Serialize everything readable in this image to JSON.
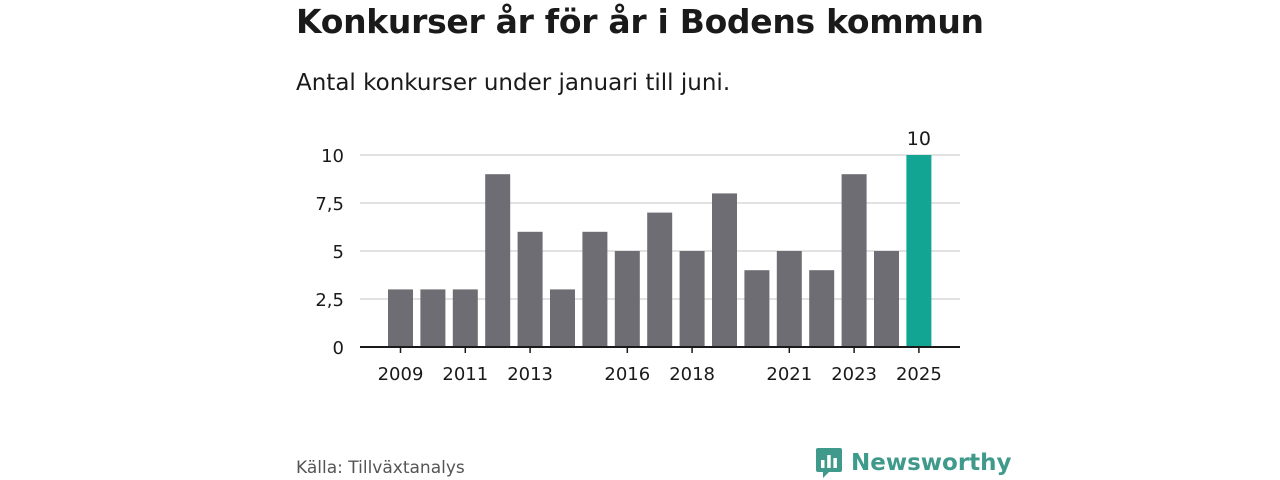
{
  "header": {
    "title": "Konkurser år för år i Bodens kommun",
    "subtitle": "Antal konkurser under januari till juni."
  },
  "footer": {
    "source": "Källa: Tillväxtanalys",
    "brand": "Newsworthy"
  },
  "colors": {
    "bar": "#6e6d73",
    "highlight": "#12a594",
    "grid": "#d9d9d9",
    "axis": "#1a1a1a",
    "brand": "#3f9a8c"
  },
  "icons": {
    "brand_logo": "newsworthy-chart-bubble-icon"
  },
  "chart_data": {
    "type": "bar",
    "title": "Konkurser år för år i Bodens kommun",
    "subtitle": "Antal konkurser under januari till juni.",
    "categories": [
      "2009",
      "2010",
      "2011",
      "2012",
      "2013",
      "2014",
      "2015",
      "2016",
      "2017",
      "2018",
      "2019",
      "2020",
      "2021",
      "2022",
      "2023",
      "2024",
      "2025"
    ],
    "values": [
      3,
      3,
      3,
      9,
      6,
      3,
      6,
      5,
      7,
      5,
      8,
      4,
      5,
      4,
      9,
      5,
      10
    ],
    "highlight_category": "2025",
    "highlight_value_label": "10",
    "x_tick_labels": [
      "2009",
      "2011",
      "2013",
      "2016",
      "2018",
      "2021",
      "2023",
      "2025"
    ],
    "y_ticks": [
      0,
      2.5,
      5,
      7.5,
      10
    ],
    "y_tick_labels": [
      "0",
      "2,5",
      "5",
      "7,5",
      "10"
    ],
    "ylim": [
      0,
      10
    ],
    "grid": true,
    "legend": "none"
  }
}
